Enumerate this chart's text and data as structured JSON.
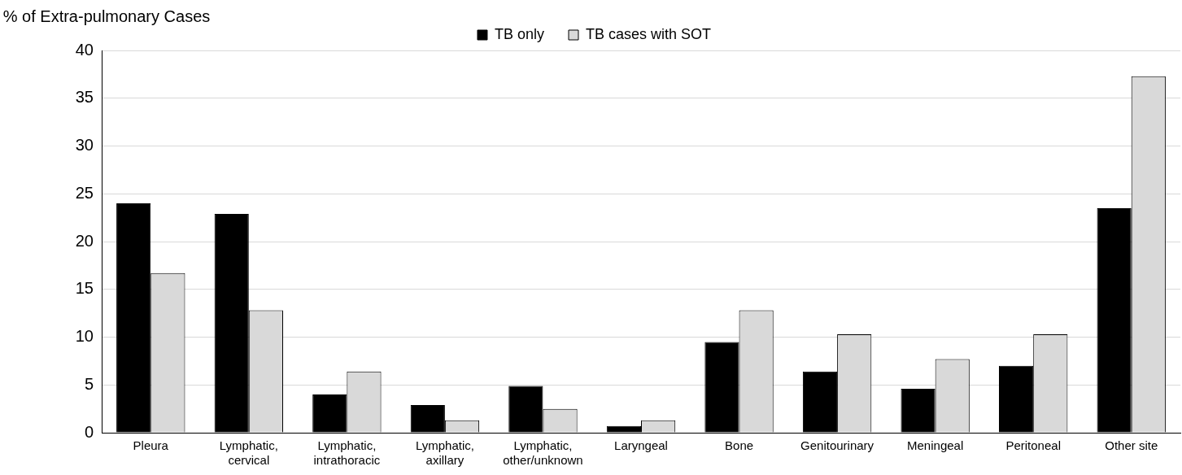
{
  "chart_data": {
    "type": "bar",
    "ylabel": "% of Extra-pulmonary Cases",
    "categories": [
      "Pleura",
      "Lymphatic, cervical",
      "Lymphatic, intrathoracic",
      "Lymphatic, axillary",
      "Lymphatic, other/unknown",
      "Laryngeal",
      "Bone",
      "Genitourinary",
      "Meningeal",
      "Peritoneal",
      "Other site"
    ],
    "series": [
      {
        "name": "TB only",
        "color": "#000000",
        "values": [
          24.0,
          22.9,
          4.0,
          2.9,
          4.9,
          0.7,
          9.5,
          6.4,
          4.6,
          7.0,
          23.5
        ]
      },
      {
        "name": "TB cases with SOT",
        "color": "#d9d9d9",
        "values": [
          16.7,
          12.8,
          6.4,
          1.3,
          2.5,
          1.3,
          12.8,
          10.3,
          7.7,
          10.3,
          37.3
        ]
      }
    ],
    "ylim": [
      0,
      40
    ],
    "yticks": [
      0,
      5,
      10,
      15,
      20,
      25,
      30,
      35,
      40
    ],
    "grid": "y",
    "legend": "top"
  }
}
